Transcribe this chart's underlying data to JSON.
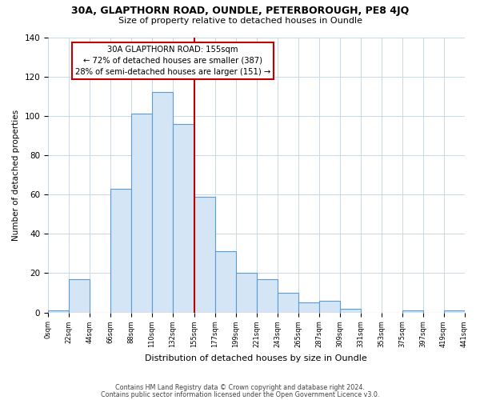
{
  "title": "30A, GLAPTHORN ROAD, OUNDLE, PETERBOROUGH, PE8 4JQ",
  "subtitle": "Size of property relative to detached houses in Oundle",
  "xlabel": "Distribution of detached houses by size in Oundle",
  "ylabel": "Number of detached properties",
  "bar_edges": [
    0,
    22,
    44,
    66,
    88,
    110,
    132,
    155,
    177,
    199,
    221,
    243,
    265,
    287,
    309,
    331,
    353,
    375,
    397,
    419,
    441
  ],
  "bar_heights": [
    1,
    17,
    0,
    63,
    101,
    112,
    96,
    59,
    31,
    20,
    17,
    10,
    5,
    6,
    2,
    0,
    0,
    1,
    0,
    1
  ],
  "bar_face_color": "#d4e6f5",
  "bar_edge_color": "#5b9bd5",
  "property_line_x": 155,
  "property_line_color": "#c00000",
  "annotation_title": "30A GLAPTHORN ROAD: 155sqm",
  "annotation_line1": "← 72% of detached houses are smaller (387)",
  "annotation_line2": "28% of semi-detached houses are larger (151) →",
  "annotation_box_color": "#ffffff",
  "annotation_box_edge": "#c00000",
  "ylim": [
    0,
    140
  ],
  "yticks": [
    0,
    20,
    40,
    60,
    80,
    100,
    120,
    140
  ],
  "tick_labels": [
    "0sqm",
    "22sqm",
    "44sqm",
    "66sqm",
    "88sqm",
    "110sqm",
    "132sqm",
    "155sqm",
    "177sqm",
    "199sqm",
    "221sqm",
    "243sqm",
    "265sqm",
    "287sqm",
    "309sqm",
    "331sqm",
    "353sqm",
    "375sqm",
    "397sqm",
    "419sqm",
    "441sqm"
  ],
  "footnote1": "Contains HM Land Registry data © Crown copyright and database right 2024.",
  "footnote2": "Contains public sector information licensed under the Open Government Licence v3.0.",
  "background_color": "#ffffff",
  "grid_color": "#c8d8e8"
}
